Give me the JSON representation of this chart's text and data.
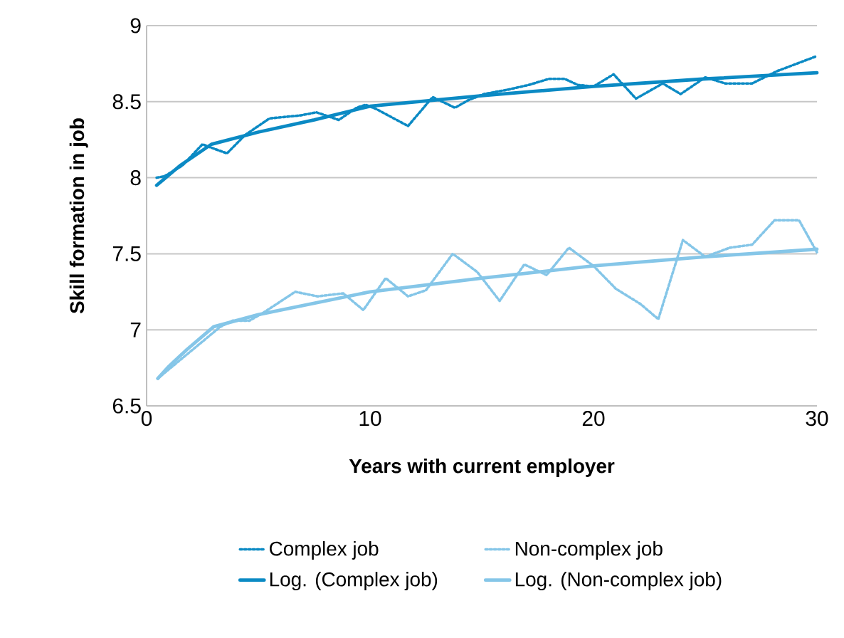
{
  "chart_data": {
    "type": "line",
    "xlabel": "Years with current employer",
    "ylabel": "Skill formation in job",
    "xlim": [
      0,
      30
    ],
    "xticks": [
      0,
      10,
      20,
      30
    ],
    "ylim": [
      6.5,
      9
    ],
    "yticks": [
      6.5,
      7,
      7.5,
      8,
      8.5,
      9
    ],
    "grid": "y",
    "legend": "bottom",
    "marker": "none",
    "series": [
      {
        "name": "Complex job",
        "color": "#0b8ac4",
        "line_style": "dotted",
        "x": [
          0.45,
          0.8,
          1.6,
          2.5,
          2.85,
          3.6,
          4.4,
          5.5,
          6.9,
          7.6,
          8.6,
          9.4,
          9.8,
          10.3,
          11.7,
          12.8,
          13.8,
          14.4,
          15.1,
          16.2,
          17.1,
          18,
          18.7,
          19.3,
          20,
          20.9,
          21.4,
          21.9,
          23.1,
          23.9,
          25,
          25.9,
          27.1,
          28.2,
          30
        ],
        "values": [
          8.0,
          8.01,
          8.08,
          8.22,
          8.2,
          8.16,
          8.28,
          8.39,
          8.41,
          8.43,
          8.38,
          8.46,
          8.48,
          8.45,
          8.34,
          8.53,
          8.46,
          8.51,
          8.55,
          8.58,
          8.61,
          8.65,
          8.65,
          8.61,
          8.6,
          8.68,
          8.6,
          8.52,
          8.62,
          8.55,
          8.66,
          8.62,
          8.62,
          8.7,
          8.8
        ]
      },
      {
        "name": "Non-complex job",
        "color": "#85c6e8",
        "line_style": "dotted",
        "x": [
          0.5,
          3.3,
          3.85,
          4.6,
          5.2,
          6.65,
          7.65,
          8.8,
          9.7,
          10.7,
          11.7,
          12.5,
          13.7,
          14.8,
          15.8,
          16.9,
          17.9,
          18.9,
          20,
          21,
          22.1,
          22.9,
          24,
          25,
          26.1,
          27.1,
          28.1,
          29.2,
          30
        ],
        "values": [
          6.68,
          7.02,
          7.06,
          7.06,
          7.11,
          7.25,
          7.22,
          7.24,
          7.13,
          7.34,
          7.22,
          7.26,
          7.5,
          7.38,
          7.19,
          7.43,
          7.36,
          7.54,
          7.42,
          7.27,
          7.17,
          7.07,
          7.59,
          7.48,
          7.54,
          7.56,
          7.72,
          7.72,
          7.51
        ]
      },
      {
        "name": "Log. (Complex job)",
        "color": "#0b8ac4",
        "line_style": "solid",
        "x": [
          0.45,
          1.5,
          2.9,
          5,
          7.5,
          10,
          15,
          20,
          25,
          30
        ],
        "values": [
          7.95,
          8.08,
          8.22,
          8.3,
          8.38,
          8.47,
          8.54,
          8.6,
          8.65,
          8.69
        ]
      },
      {
        "name": "Log. (Non-complex job)",
        "color": "#85c6e8",
        "line_style": "solid",
        "x": [
          0.5,
          1,
          1.8,
          3,
          5,
          10,
          15,
          20,
          25,
          30
        ],
        "values": [
          6.68,
          6.76,
          6.87,
          7.02,
          7.1,
          7.25,
          7.34,
          7.42,
          7.48,
          7.53
        ]
      }
    ]
  }
}
